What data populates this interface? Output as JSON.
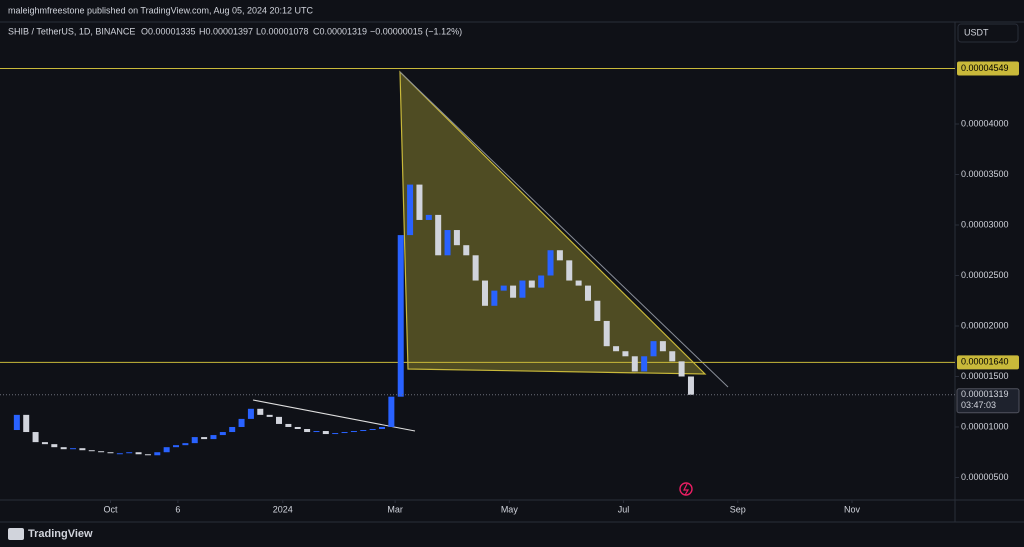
{
  "header": {
    "published": "maleighmfreestone published on TradingView.com, Aug 05, 2024 20:12 UTC",
    "symbol": "SHIB / TetherUS, 1D, BINANCE",
    "ohlc": [
      "O0.00001335",
      "H0.00001397",
      "L0.00001078",
      "C0.00001319"
    ],
    "change": "−0.00000015 (−1.12%)",
    "currency": "USDT",
    "brand": "TradingView"
  },
  "chart_data": {
    "type": "candlestick",
    "x": [
      0,
      5,
      10,
      15,
      20,
      25,
      30,
      35,
      40,
      45,
      50,
      55,
      60,
      65,
      70,
      75,
      80,
      85,
      90,
      95,
      100,
      105,
      110,
      115,
      120,
      125,
      130,
      135,
      140,
      145,
      150,
      155,
      160,
      165,
      170,
      175,
      180,
      185,
      190,
      195,
      200,
      205,
      210,
      215,
      220,
      225,
      230,
      235,
      240,
      245,
      250,
      255,
      260,
      265,
      270,
      275,
      280,
      285,
      290,
      295,
      300,
      305,
      310,
      315,
      320,
      325,
      330,
      335,
      340,
      345,
      350,
      355,
      360,
      365
    ],
    "values": [
      9.7e-06,
      1.12e-05,
      9.5e-06,
      8.5e-06,
      8.3e-06,
      8e-06,
      7.8e-06,
      7.9e-06,
      7.7e-06,
      7.6e-06,
      7.5e-06,
      7.4e-06,
      7.4e-06,
      7.5e-06,
      7.3e-06,
      7.2e-06,
      7.5e-06,
      8e-06,
      8.2e-06,
      8.4e-06,
      9e-06,
      8.8e-06,
      9.2e-06,
      9.5e-06,
      1e-05,
      1.08e-05,
      1.18e-05,
      1.12e-05,
      1.1e-05,
      1.03e-05,
      1e-05,
      9.8e-06,
      9.5e-06,
      9.6e-06,
      9.3e-06,
      9.4e-06,
      9.5e-06,
      9.6e-06,
      9.7e-06,
      9.8e-06,
      1e-05,
      1.3e-05,
      2.9e-05,
      3.4e-05,
      3.05e-05,
      3.1e-05,
      2.7e-05,
      2.95e-05,
      2.8e-05,
      2.7e-05,
      2.45e-05,
      2.2e-05,
      2.35e-05,
      2.4e-05,
      2.28e-05,
      2.45e-05,
      2.38e-05,
      2.5e-05,
      2.75e-05,
      2.65e-05,
      2.45e-05,
      2.4e-05,
      2.25e-05,
      2.05e-05,
      1.8e-05,
      1.75e-05,
      1.7e-05,
      1.55e-05,
      1.7e-05,
      1.85e-05,
      1.75e-05,
      1.65e-05,
      1.5e-05,
      1.319e-05
    ],
    "up_color": "#2962ff",
    "down_color": "#d1d4dc",
    "xlim": [
      -4,
      506
    ],
    "xticks": [
      {
        "value": 55,
        "label": "Oct"
      },
      {
        "value": 91,
        "label": "6"
      },
      {
        "value": 147,
        "label": "2024"
      },
      {
        "value": 207,
        "label": "Mar"
      },
      {
        "value": 268,
        "label": "May"
      },
      {
        "value": 329,
        "label": "Jul"
      },
      {
        "value": 390,
        "label": "Sep"
      },
      {
        "value": 451,
        "label": "Nov"
      }
    ],
    "ylim": [
      2.77e-06,
      5.01e-05
    ],
    "yticks": [
      {
        "value": 5e-06,
        "label": "0.00000500"
      },
      {
        "value": 1e-05,
        "label": "0.00001000"
      },
      {
        "value": 1.5e-05,
        "label": "0.00001500"
      },
      {
        "value": 2e-05,
        "label": "0.00002000"
      },
      {
        "value": 2.5e-05,
        "label": "0.00002500"
      },
      {
        "value": 3e-05,
        "label": "0.00003000"
      },
      {
        "value": 3.5e-05,
        "label": "0.00003500"
      },
      {
        "value": 4e-05,
        "label": "0.00004000"
      }
    ],
    "hlines": [
      {
        "value": 4.549e-05,
        "label": "0.00004549"
      },
      {
        "value": 1.64e-05,
        "label": "0.00001640"
      }
    ],
    "hline_color": "#c9b93a",
    "last_price": {
      "value": 1.319e-05,
      "label": "0.00001319"
    },
    "countdown": "03:47:03"
  }
}
